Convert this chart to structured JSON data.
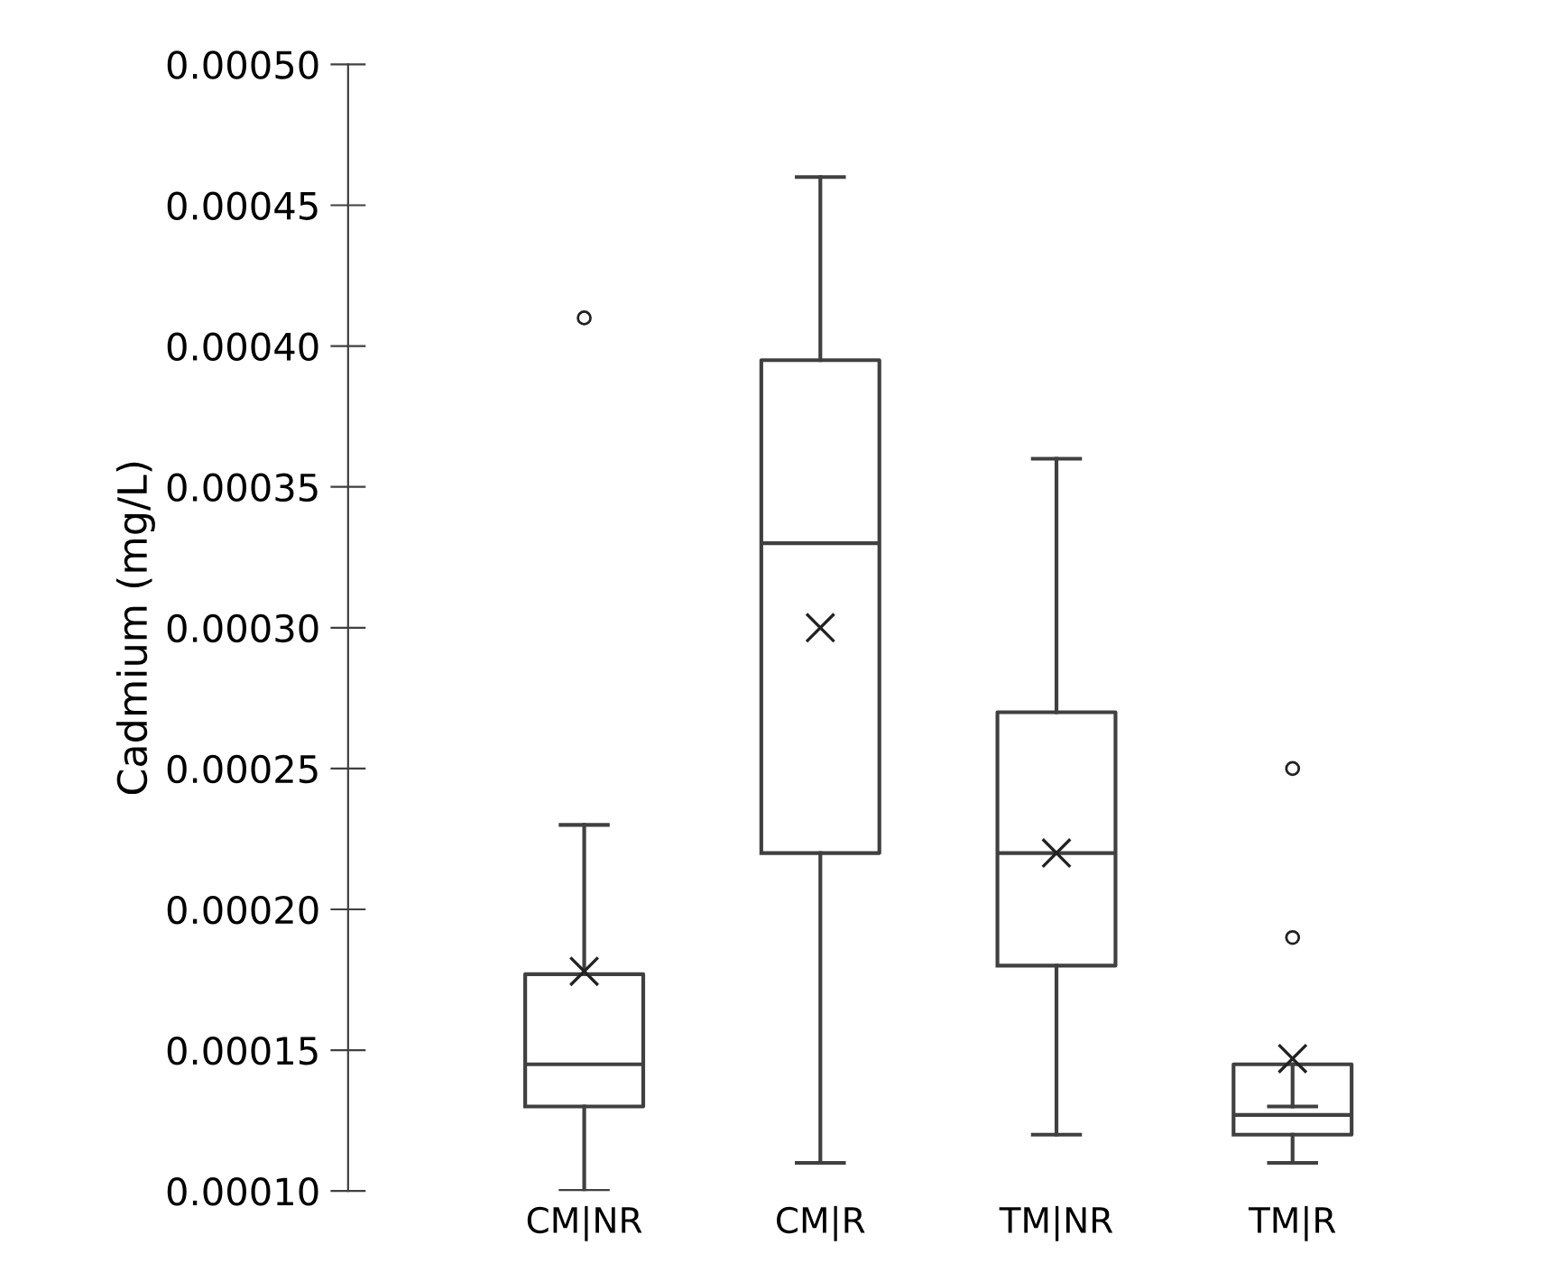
{
  "chart_data": {
    "type": "box",
    "ylabel": "Cadmium (mg/L)",
    "categories": [
      "CM|NR",
      "CM|R",
      "TM|NR",
      "TM|R"
    ],
    "boxes": [
      {
        "low": 0.0001,
        "q1": 0.00013,
        "median": 0.000145,
        "q3": 0.000177,
        "high": 0.00023,
        "mean": 0.000178,
        "outliers": [
          0.00041
        ]
      },
      {
        "low": 0.00011,
        "q1": 0.00022,
        "median": 0.00033,
        "q3": 0.000395,
        "high": 0.00046,
        "mean": 0.0003
      },
      {
        "low": 0.00012,
        "q1": 0.00018,
        "median": 0.00022,
        "q3": 0.00027,
        "high": 0.00036,
        "mean": 0.00022
      },
      {
        "low": 0.00011,
        "q1": 0.00012,
        "median": 0.000127,
        "q3": 0.000145,
        "high": 0.00013,
        "mean": 0.000147,
        "outliers": [
          0.00025,
          0.00019
        ]
      }
    ],
    "color": "#404040",
    "ylim": [
      0.0001,
      0.0005
    ],
    "yticks": [
      {
        "value": 0.0001,
        "label": "0.00010"
      },
      {
        "value": 0.00015,
        "label": "0.00015"
      },
      {
        "value": 0.0002,
        "label": "0.00020"
      },
      {
        "value": 0.00025,
        "label": "0.00025"
      },
      {
        "value": 0.0003,
        "label": "0.00030"
      },
      {
        "value": 0.00035,
        "label": "0.00035"
      },
      {
        "value": 0.0004,
        "label": "0.00040"
      },
      {
        "value": 0.00045,
        "label": "0.00045"
      },
      {
        "value": 0.0005,
        "label": "0.00050"
      }
    ],
    "grid": false,
    "legend": false
  }
}
